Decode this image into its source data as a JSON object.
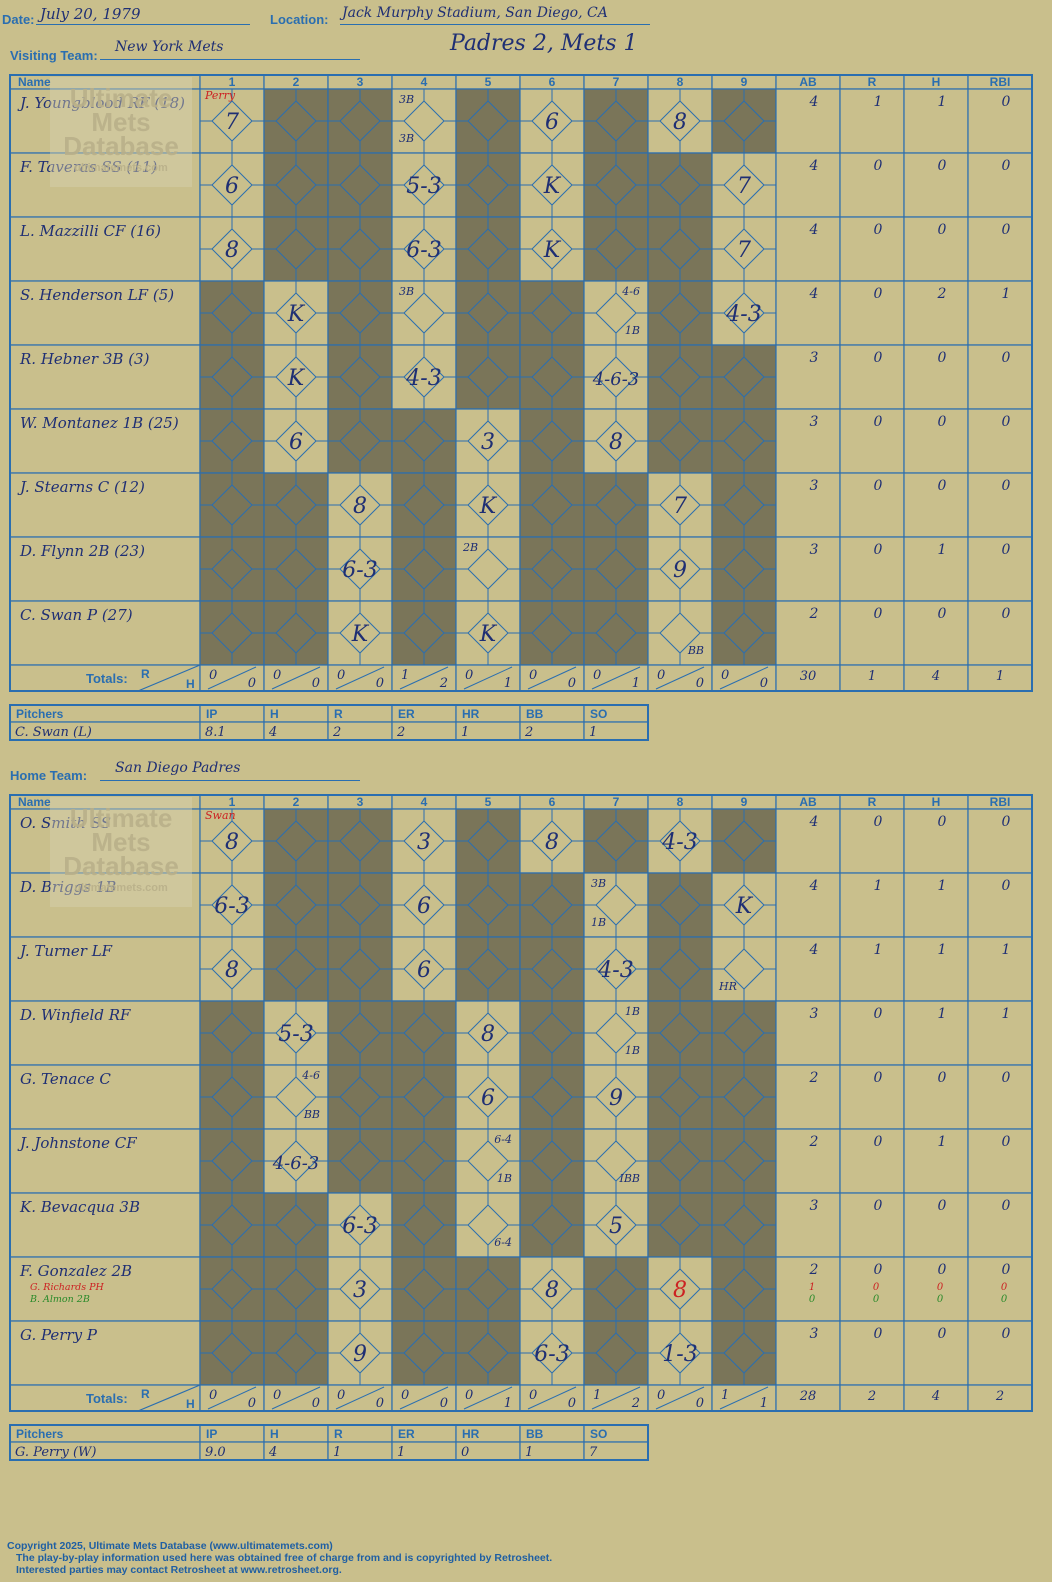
{
  "header": {
    "date_label": "Date:",
    "date": "July 20, 1979",
    "location_label": "Location:",
    "location": "Jack Murphy Stadium, San Diego, CA",
    "visiting_label": "Visiting Team:",
    "visiting_team": "New York Mets",
    "result": "Padres 2, Mets 1",
    "home_label": "Home Team:",
    "home_team": "San Diego Padres"
  },
  "col_headers": [
    "Name",
    "1",
    "2",
    "3",
    "4",
    "5",
    "6",
    "7",
    "8",
    "9",
    "AB",
    "R",
    "H",
    "RBI"
  ],
  "totals_label": "Totals:",
  "pitch_headers": [
    "Pitchers",
    "IP",
    "H",
    "R",
    "ER",
    "HR",
    "BB",
    "SO"
  ],
  "watermark": [
    "Ultimate",
    "Mets",
    "Database",
    "ultimatemets.com"
  ],
  "colors": {
    "paper": "#c9bf8c",
    "shade": "#7a7559",
    "line": "#2a6eb0",
    "ink": "#1f2f74",
    "red": "#cc2222"
  },
  "visitors": {
    "top_note": "Perry",
    "batters": [
      {
        "name": "J. Youngblood RF (18)",
        "shade": [
          0,
          1,
          1,
          0,
          1,
          0,
          1,
          0,
          1
        ],
        "plays": [
          "7",
          "",
          "",
          "",
          "",
          "6",
          "",
          "8",
          ""
        ],
        "stats": [
          "4",
          "1",
          "1",
          "0"
        ]
      },
      {
        "name": "F. Taveras SS (11)",
        "shade": [
          0,
          1,
          1,
          0,
          1,
          0,
          1,
          1,
          0
        ],
        "plays": [
          "6",
          "",
          "",
          "5-3",
          "",
          "K",
          "",
          "",
          "7"
        ],
        "stats": [
          "4",
          "0",
          "0",
          "0"
        ]
      },
      {
        "name": "L. Mazzilli CF (16)",
        "shade": [
          0,
          1,
          1,
          0,
          1,
          0,
          1,
          1,
          0
        ],
        "plays": [
          "8",
          "",
          "",
          "6-3",
          "",
          "K",
          "",
          "",
          "7"
        ],
        "stats": [
          "4",
          "0",
          "0",
          "0"
        ]
      },
      {
        "name": "S. Henderson LF (5)",
        "shade": [
          1,
          0,
          1,
          0,
          1,
          1,
          0,
          1,
          0
        ],
        "plays": [
          "",
          "K",
          "",
          "",
          "",
          "",
          "",
          "",
          "4-3"
        ],
        "stats": [
          "4",
          "0",
          "2",
          "1"
        ]
      },
      {
        "name": "R. Hebner 3B (3)",
        "shade": [
          1,
          0,
          1,
          0,
          1,
          1,
          0,
          1,
          1
        ],
        "plays": [
          "",
          "K",
          "",
          "4-3",
          "",
          "",
          "4-6-3",
          "",
          ""
        ],
        "stats": [
          "3",
          "0",
          "0",
          "0"
        ]
      },
      {
        "name": "W. Montanez 1B (25)",
        "shade": [
          1,
          0,
          1,
          1,
          0,
          1,
          0,
          1,
          1
        ],
        "plays": [
          "",
          "6",
          "",
          "",
          "3",
          "",
          "8",
          "",
          ""
        ],
        "stats": [
          "3",
          "0",
          "0",
          "0"
        ]
      },
      {
        "name": "J. Stearns C (12)",
        "shade": [
          1,
          1,
          0,
          1,
          0,
          1,
          1,
          0,
          1
        ],
        "plays": [
          "",
          "",
          "8",
          "",
          "K",
          "",
          "",
          "7",
          ""
        ],
        "stats": [
          "3",
          "0",
          "0",
          "0"
        ]
      },
      {
        "name": "D. Flynn 2B (23)",
        "shade": [
          1,
          1,
          0,
          1,
          0,
          1,
          1,
          0,
          1
        ],
        "plays": [
          "",
          "",
          "6-3",
          "",
          "",
          "",
          "",
          "9",
          ""
        ],
        "stats": [
          "3",
          "0",
          "1",
          "0"
        ]
      },
      {
        "name": "C. Swan P (27)",
        "shade": [
          1,
          1,
          0,
          1,
          0,
          1,
          1,
          0,
          1
        ],
        "plays": [
          "",
          "",
          "K",
          "",
          "K",
          "",
          "",
          "",
          ""
        ],
        "stats": [
          "2",
          "0",
          "0",
          "0"
        ]
      }
    ],
    "notes": [
      {
        "row": 0,
        "inn": 3,
        "pos": "tl",
        "text": "3B"
      },
      {
        "row": 0,
        "inn": 3,
        "pos": "bl",
        "text": "3B"
      },
      {
        "row": 3,
        "inn": 3,
        "pos": "tl",
        "text": "3B"
      },
      {
        "row": 3,
        "inn": 6,
        "pos": "tr",
        "text": "4-6"
      },
      {
        "row": 3,
        "inn": 6,
        "pos": "br",
        "text": "1B"
      },
      {
        "row": 7,
        "inn": 4,
        "pos": "tl",
        "text": "2B"
      },
      {
        "row": 8,
        "inn": 7,
        "pos": "br",
        "text": "BB"
      }
    ],
    "totals": [
      [
        "0",
        "0"
      ],
      [
        "0",
        "0"
      ],
      [
        "0",
        "0"
      ],
      [
        "1",
        "2"
      ],
      [
        "0",
        "1"
      ],
      [
        "0",
        "0"
      ],
      [
        "0",
        "1"
      ],
      [
        "0",
        "0"
      ],
      [
        "0",
        "0"
      ]
    ],
    "totals_stats": [
      "30",
      "1",
      "4",
      "1"
    ],
    "pitchers": [
      [
        "C. Swan (L)",
        "8.1",
        "4",
        "2",
        "2",
        "1",
        "2",
        "1"
      ]
    ]
  },
  "home": {
    "top_note": "Swan",
    "batters": [
      {
        "name": "O. Smith SS",
        "shade": [
          0,
          1,
          1,
          0,
          1,
          0,
          1,
          0,
          1
        ],
        "plays": [
          "8",
          "",
          "",
          "3",
          "",
          "8",
          "",
          "4-3",
          ""
        ],
        "stats": [
          "4",
          "0",
          "0",
          "0"
        ]
      },
      {
        "name": "D. Briggs 1B",
        "shade": [
          0,
          1,
          1,
          0,
          1,
          1,
          0,
          1,
          0
        ],
        "plays": [
          "6-3",
          "",
          "",
          "6",
          "",
          "",
          "",
          "",
          "K"
        ],
        "stats": [
          "4",
          "1",
          "1",
          "0"
        ]
      },
      {
        "name": "J. Turner LF",
        "shade": [
          0,
          1,
          1,
          0,
          1,
          1,
          0,
          1,
          0
        ],
        "plays": [
          "8",
          "",
          "",
          "6",
          "",
          "",
          "4-3",
          "",
          ""
        ],
        "stats": [
          "4",
          "1",
          "1",
          "1"
        ]
      },
      {
        "name": "D. Winfield RF",
        "shade": [
          1,
          0,
          1,
          1,
          0,
          1,
          0,
          1,
          1
        ],
        "plays": [
          "",
          "5-3",
          "",
          "",
          "8",
          "",
          "",
          "",
          ""
        ],
        "stats": [
          "3",
          "0",
          "1",
          "1"
        ]
      },
      {
        "name": "G. Tenace C",
        "shade": [
          1,
          0,
          1,
          1,
          0,
          1,
          0,
          1,
          1
        ],
        "plays": [
          "",
          "",
          "",
          "",
          "6",
          "",
          "9",
          "",
          ""
        ],
        "stats": [
          "2",
          "0",
          "0",
          "0"
        ]
      },
      {
        "name": "J. Johnstone CF",
        "shade": [
          1,
          0,
          1,
          1,
          0,
          1,
          0,
          1,
          1
        ],
        "plays": [
          "",
          "4-6-3",
          "",
          "",
          "",
          "",
          "",
          "",
          ""
        ],
        "stats": [
          "2",
          "0",
          "1",
          "0"
        ]
      },
      {
        "name": "K. Bevacqua 3B",
        "shade": [
          1,
          1,
          0,
          1,
          0,
          1,
          0,
          1,
          1
        ],
        "plays": [
          "",
          "",
          "6-3",
          "",
          "",
          "",
          "5",
          "",
          ""
        ],
        "stats": [
          "3",
          "0",
          "0",
          "0"
        ]
      },
      {
        "name": "F. Gonzalez 2B",
        "shade": [
          1,
          1,
          0,
          1,
          1,
          0,
          1,
          0,
          1
        ],
        "plays": [
          "",
          "",
          "3",
          "",
          "",
          "8",
          "",
          "",
          ""
        ],
        "stats": [
          "2",
          "0",
          "0",
          "0"
        ]
      },
      {
        "name": "G. Perry P",
        "shade": [
          1,
          1,
          0,
          1,
          1,
          0,
          1,
          0,
          1
        ],
        "plays": [
          "",
          "",
          "9",
          "",
          "",
          "6-3",
          "",
          "1-3",
          ""
        ],
        "stats": [
          "3",
          "0",
          "0",
          "0"
        ]
      }
    ],
    "subs": [
      {
        "name": "G. Richards PH",
        "color": "#cc2222",
        "stats": [
          "1",
          "0",
          "0",
          "0"
        ]
      },
      {
        "name": "B. Almon 2B",
        "color": "#2a8a2a",
        "stats": [
          "0",
          "0",
          "0",
          "0"
        ]
      }
    ],
    "red_play": {
      "row": 7,
      "inn": 7,
      "text": "8"
    },
    "notes": [
      {
        "row": 1,
        "inn": 6,
        "pos": "tl",
        "text": "3B"
      },
      {
        "row": 1,
        "inn": 6,
        "pos": "bl",
        "text": "1B"
      },
      {
        "row": 2,
        "inn": 8,
        "pos": "bl",
        "text": "HR"
      },
      {
        "row": 3,
        "inn": 6,
        "pos": "tr",
        "text": "1B"
      },
      {
        "row": 3,
        "inn": 6,
        "pos": "br",
        "text": "1B"
      },
      {
        "row": 4,
        "inn": 1,
        "pos": "tr",
        "text": "4-6"
      },
      {
        "row": 4,
        "inn": 1,
        "pos": "br",
        "text": "BB"
      },
      {
        "row": 5,
        "inn": 4,
        "pos": "tr",
        "text": "6-4"
      },
      {
        "row": 5,
        "inn": 4,
        "pos": "br",
        "text": "1B"
      },
      {
        "row": 5,
        "inn": 6,
        "pos": "br",
        "text": "IBB"
      },
      {
        "row": 6,
        "inn": 4,
        "pos": "br",
        "text": "6-4"
      }
    ],
    "totals": [
      [
        "0",
        "0"
      ],
      [
        "0",
        "0"
      ],
      [
        "0",
        "0"
      ],
      [
        "0",
        "0"
      ],
      [
        "0",
        "1"
      ],
      [
        "0",
        "0"
      ],
      [
        "1",
        "2"
      ],
      [
        "0",
        "0"
      ],
      [
        "1",
        "1"
      ]
    ],
    "totals_stats": [
      "28",
      "2",
      "4",
      "2"
    ],
    "pitchers": [
      [
        "G. Perry (W)",
        "9.0",
        "4",
        "1",
        "1",
        "0",
        "1",
        "7"
      ]
    ]
  },
  "footer": {
    "line1": "Copyright 2025, Ultimate Mets Database (www.ultimatemets.com)",
    "line2": "The play-by-play information used here was obtained free of charge from and is copyrighted by Retrosheet.",
    "line3": "Interested parties may contact Retrosheet at www.retrosheet.org."
  }
}
